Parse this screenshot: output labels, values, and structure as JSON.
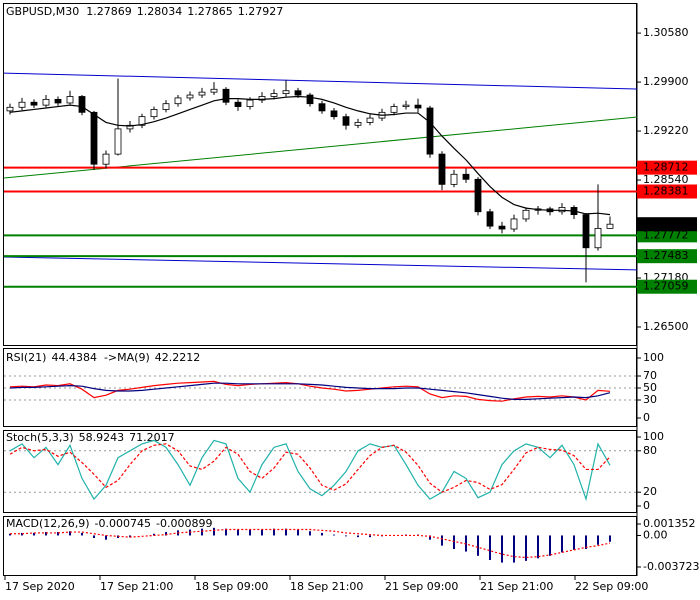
{
  "chart_data": {
    "type": "candlestick",
    "title": "GBPUSD,M30",
    "candles": [
      [
        1.295,
        1.296,
        1.2945,
        1.2955
      ],
      [
        1.2955,
        1.2968,
        1.2951,
        1.2962
      ],
      [
        1.2962,
        1.2966,
        1.2954,
        1.2958
      ],
      [
        1.2958,
        1.2972,
        1.2955,
        1.2966
      ],
      [
        1.2966,
        1.297,
        1.2957,
        1.2961
      ],
      [
        1.2961,
        1.2978,
        1.2959,
        1.297
      ],
      [
        1.297,
        1.2972,
        1.2944,
        1.2948
      ],
      [
        1.2948,
        1.295,
        1.2868,
        1.2876
      ],
      [
        1.2876,
        1.2895,
        1.287,
        1.289
      ],
      [
        1.289,
        1.2995,
        1.2888,
        1.2925
      ],
      [
        1.2925,
        1.2936,
        1.292,
        1.293
      ],
      [
        1.293,
        1.2946,
        1.2926,
        1.2942
      ],
      [
        1.2942,
        1.2956,
        1.2938,
        1.2952
      ],
      [
        1.2952,
        1.2965,
        1.2948,
        1.296
      ],
      [
        1.296,
        1.2972,
        1.2956,
        1.2968
      ],
      [
        1.2968,
        1.2977,
        1.2964,
        1.2972
      ],
      [
        1.2972,
        1.2982,
        1.2968,
        1.2976
      ],
      [
        1.2976,
        1.299,
        1.2972,
        1.298
      ],
      [
        1.298,
        1.2983,
        1.2958,
        1.2962
      ],
      [
        1.2962,
        1.2966,
        1.295,
        1.2956
      ],
      [
        1.2956,
        1.2969,
        1.2952,
        1.2965
      ],
      [
        1.2965,
        1.2976,
        1.2961,
        1.297
      ],
      [
        1.297,
        1.298,
        1.2966,
        1.2974
      ],
      [
        1.2974,
        1.2993,
        1.297,
        1.2978
      ],
      [
        1.2978,
        1.2982,
        1.2968,
        1.2972
      ],
      [
        1.2972,
        1.2975,
        1.2956,
        1.296
      ],
      [
        1.296,
        1.2964,
        1.2946,
        1.295
      ],
      [
        1.295,
        1.2954,
        1.2938,
        1.2942
      ],
      [
        1.2942,
        1.2946,
        1.2924,
        1.293
      ],
      [
        1.293,
        1.2939,
        1.2926,
        1.2934
      ],
      [
        1.2934,
        1.2945,
        1.293,
        1.294
      ],
      [
        1.294,
        1.2953,
        1.2936,
        1.2948
      ],
      [
        1.2948,
        1.296,
        1.2944,
        1.2956
      ],
      [
        1.2956,
        1.2964,
        1.2952,
        1.2958
      ],
      [
        1.2958,
        1.2967,
        1.2948,
        1.2954
      ],
      [
        1.2954,
        1.2957,
        1.2885,
        1.289
      ],
      [
        1.289,
        1.2894,
        1.284,
        1.2848
      ],
      [
        1.2848,
        1.2868,
        1.2844,
        1.2862
      ],
      [
        1.2862,
        1.287,
        1.285,
        1.2855
      ],
      [
        1.2855,
        1.2858,
        1.2805,
        1.281
      ],
      [
        1.281,
        1.2814,
        1.2786,
        1.279
      ],
      [
        1.279,
        1.2796,
        1.278,
        1.2786
      ],
      [
        1.2786,
        1.2806,
        1.2782,
        1.28
      ],
      [
        1.28,
        1.2816,
        1.2796,
        1.2812
      ],
      [
        1.2812,
        1.2818,
        1.2806,
        1.2814
      ],
      [
        1.2814,
        1.2817,
        1.2805,
        1.281
      ],
      [
        1.281,
        1.2822,
        1.2806,
        1.2816
      ],
      [
        1.2816,
        1.2819,
        1.28,
        1.2806
      ],
      [
        1.2806,
        1.2808,
        1.2712,
        1.276
      ],
      [
        1.276,
        1.2848,
        1.2756,
        1.27869
      ],
      [
        1.27869,
        1.28034,
        1.27865,
        1.27927
      ]
    ],
    "ma": [
      1.2948,
      1.295,
      1.2952,
      1.2954,
      1.2956,
      1.2958,
      1.2956,
      1.2945,
      1.2934,
      1.293,
      1.2929,
      1.2931,
      1.2935,
      1.294,
      1.2946,
      1.2952,
      1.2958,
      1.2964,
      1.2967,
      1.2967,
      1.2966,
      1.2966,
      1.2967,
      1.2969,
      1.297,
      1.2969,
      1.2966,
      1.2961,
      1.2955,
      1.295,
      1.2946,
      1.2944,
      1.2945,
      1.2947,
      1.2947,
      1.2934,
      1.2915,
      1.2898,
      1.2882,
      1.2863,
      1.2845,
      1.283,
      1.282,
      1.2815,
      1.2813,
      1.2812,
      1.2812,
      1.2811,
      1.2807,
      1.2808,
      1.2806
    ],
    "ma_color": "#000000",
    "ylim": [
      1.2625,
      1.3097
    ],
    "yticks": [
      {
        "value": 1.3058,
        "label": "1.30580"
      },
      {
        "value": 1.299,
        "label": "1.29900"
      },
      {
        "value": 1.2922,
        "label": "1.29220"
      },
      {
        "value": 1.2854,
        "label": "1.28540"
      },
      {
        "value": 1.2718,
        "label": "1.27180"
      },
      {
        "value": 1.265,
        "label": "1.26500"
      }
    ],
    "levels": [
      {
        "value": 1.28712,
        "color": "#ff0000"
      },
      {
        "value": 1.28381,
        "color": "#ff0000"
      },
      {
        "value": 1.27772,
        "color": "#008000"
      },
      {
        "value": 1.27483,
        "color": "#008000"
      },
      {
        "value": 1.27059,
        "color": "#008000"
      }
    ],
    "trendlines": [
      {
        "color": "#0000cd",
        "values": [
          1.30025,
          1.29803
        ]
      },
      {
        "color": "#0000cd",
        "values": [
          1.27472,
          1.27292
        ]
      },
      {
        "color": "#008000",
        "values": [
          1.28568,
          1.29415
        ]
      }
    ],
    "x_labels": [
      "17 Sep 2020",
      "17 Sep 21:00",
      "18 Sep 09:00",
      "18 Sep 21:00",
      "21 Sep 09:00",
      "21 Sep 21:00",
      "22 Sep 09:00"
    ],
    "rsi": {
      "label": "RSI(21)",
      "ma_label": "->MA(9)",
      "color": "#ff0000",
      "ma_color": "#000080",
      "ylim": [
        0,
        100
      ],
      "yticks": [
        100,
        70,
        50,
        30,
        0
      ],
      "values": [
        52,
        53,
        52,
        55,
        54,
        57,
        48,
        34,
        38,
        46,
        48,
        51,
        54,
        56,
        58,
        59,
        60,
        61,
        56,
        54,
        56,
        57,
        58,
        59,
        57,
        53,
        50,
        48,
        45,
        46,
        48,
        50,
        52,
        53,
        52,
        40,
        34,
        37,
        36,
        31,
        29,
        28,
        32,
        35,
        36,
        35,
        37,
        35,
        30,
        46,
        44.4384
      ],
      "ma": [
        50,
        51,
        51,
        52,
        53,
        54,
        53,
        49,
        46,
        45,
        45,
        46,
        48,
        50,
        52,
        54,
        56,
        58,
        58,
        57,
        57,
        57,
        57,
        57,
        57,
        56,
        55,
        53,
        51,
        50,
        49,
        49,
        49,
        50,
        50,
        48,
        46,
        44,
        42,
        39,
        36,
        33,
        31,
        31,
        32,
        33,
        34,
        35,
        34,
        37,
        42.2212
      ]
    },
    "stoch": {
      "label": "Stoch(5,3,3)",
      "main_color": "#20b2aa",
      "signal_color": "#ff0000",
      "ylim": [
        0,
        100
      ],
      "yticks": [
        100,
        80,
        20,
        0
      ],
      "main": [
        80,
        90,
        70,
        85,
        60,
        88,
        40,
        10,
        30,
        70,
        80,
        90,
        95,
        85,
        60,
        30,
        70,
        95,
        90,
        40,
        20,
        60,
        85,
        90,
        50,
        25,
        15,
        30,
        50,
        80,
        90,
        85,
        88,
        60,
        30,
        10,
        20,
        50,
        40,
        12,
        20,
        60,
        80,
        90,
        85,
        70,
        88,
        60,
        10,
        90,
        58.9243
      ],
      "signal": [
        75,
        85,
        80,
        82,
        72,
        78,
        63,
        46,
        27,
        37,
        60,
        80,
        88,
        90,
        80,
        58,
        53,
        65,
        85,
        75,
        50,
        40,
        55,
        78,
        75,
        55,
        30,
        23,
        32,
        53,
        73,
        85,
        88,
        78,
        59,
        33,
        20,
        27,
        37,
        34,
        24,
        31,
        53,
        77,
        85,
        82,
        81,
        73,
        53,
        53,
        71.2017
      ]
    },
    "macd": {
      "label": "MACD(12,26,9)",
      "color": "#000080",
      "signal_color": "#ff0000",
      "ylim": [
        -0.003723,
        0.001352
      ],
      "yticks": [
        0.001352,
        {
          "value": 0,
          "label": "0.00"
        },
        -0.003723
      ],
      "values": [
        0.0002,
        0.0003,
        0.0003,
        0.0004,
        0.0004,
        0.0005,
        0.0003,
        -0.0003,
        -0.0005,
        -0.0003,
        -0.0002,
        0,
        0.0002,
        0.0004,
        0.0006,
        0.0007,
        0.0008,
        0.0009,
        0.0008,
        0.0007,
        0.0007,
        0.0007,
        0.0008,
        0.0008,
        0.0007,
        0.0005,
        0.0003,
        0.0001,
        -0.0001,
        -0.0002,
        -0.0002,
        -0.0001,
        0,
        0.0001,
        0.0001,
        -0.0005,
        -0.0012,
        -0.0016,
        -0.0019,
        -0.0024,
        -0.0029,
        -0.0032,
        -0.0032,
        -0.003,
        -0.0027,
        -0.0024,
        -0.002,
        -0.0017,
        -0.0016,
        -0.0011,
        -0.000745
      ],
      "signal": [
        0.0002,
        0.0002,
        0.0003,
        0.0003,
        0.0003,
        0.0004,
        0.0004,
        0.0002,
        0,
        -0.0001,
        -0.0002,
        -0.0001,
        0,
        0.0001,
        0.0003,
        0.0004,
        0.0005,
        0.0006,
        0.0007,
        0.0007,
        0.0007,
        0.0007,
        0.0007,
        0.0007,
        0.0007,
        0.0007,
        0.0006,
        0.0005,
        0.0003,
        0.0002,
        0.0001,
        0,
        0,
        0,
        0,
        -0.0001,
        -0.0004,
        -0.0007,
        -0.001,
        -0.0014,
        -0.0018,
        -0.0022,
        -0.0025,
        -0.0026,
        -0.0025,
        -0.0023,
        -0.002,
        -0.0017,
        -0.0014,
        -0.0012,
        -0.000899
      ]
    }
  }
}
